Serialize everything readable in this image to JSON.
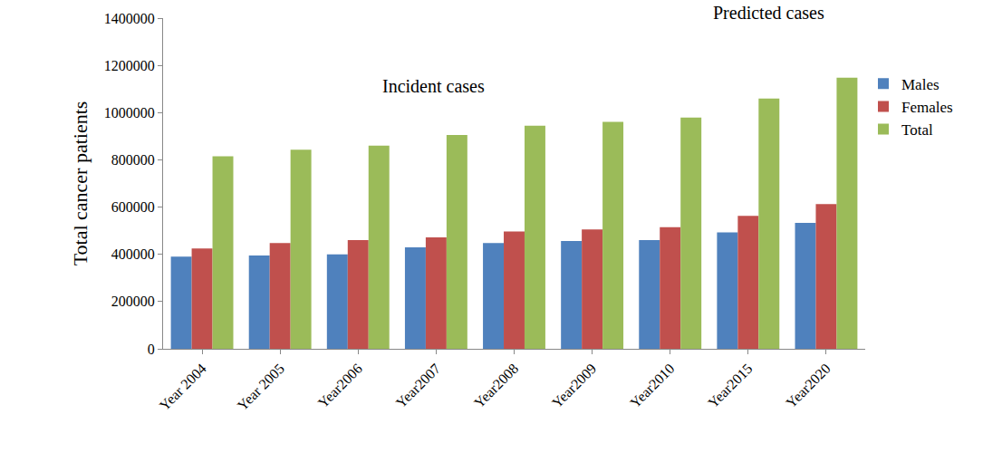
{
  "chart_data": {
    "type": "bar",
    "y_label": "Total cancer patients",
    "annotations": [
      "Incident cases",
      "Predicted cases"
    ],
    "categories": [
      "Year 2004",
      "Year 2005",
      "Year2006",
      "Year2007",
      "Year2008",
      "Year2009",
      "Year2010",
      "Year2015",
      "Year2020"
    ],
    "series": [
      {
        "name": "Males",
        "color": "#4F81BD",
        "values": [
          390000,
          395000,
          400000,
          430000,
          448000,
          456000,
          460000,
          493000,
          533000
        ]
      },
      {
        "name": "Females",
        "color": "#C0504D",
        "values": [
          425000,
          448000,
          460000,
          472000,
          497000,
          505000,
          515000,
          563000,
          613000
        ]
      },
      {
        "name": "Total",
        "color": "#9BBB59",
        "values": [
          815000,
          843000,
          860000,
          905000,
          945000,
          961000,
          979000,
          1060000,
          1148000
        ]
      }
    ],
    "ylim": [
      0,
      1400000
    ],
    "yticks": [
      0,
      200000,
      400000,
      600000,
      800000,
      1000000,
      1200000,
      1400000
    ],
    "grid": false,
    "legend": "right"
  }
}
